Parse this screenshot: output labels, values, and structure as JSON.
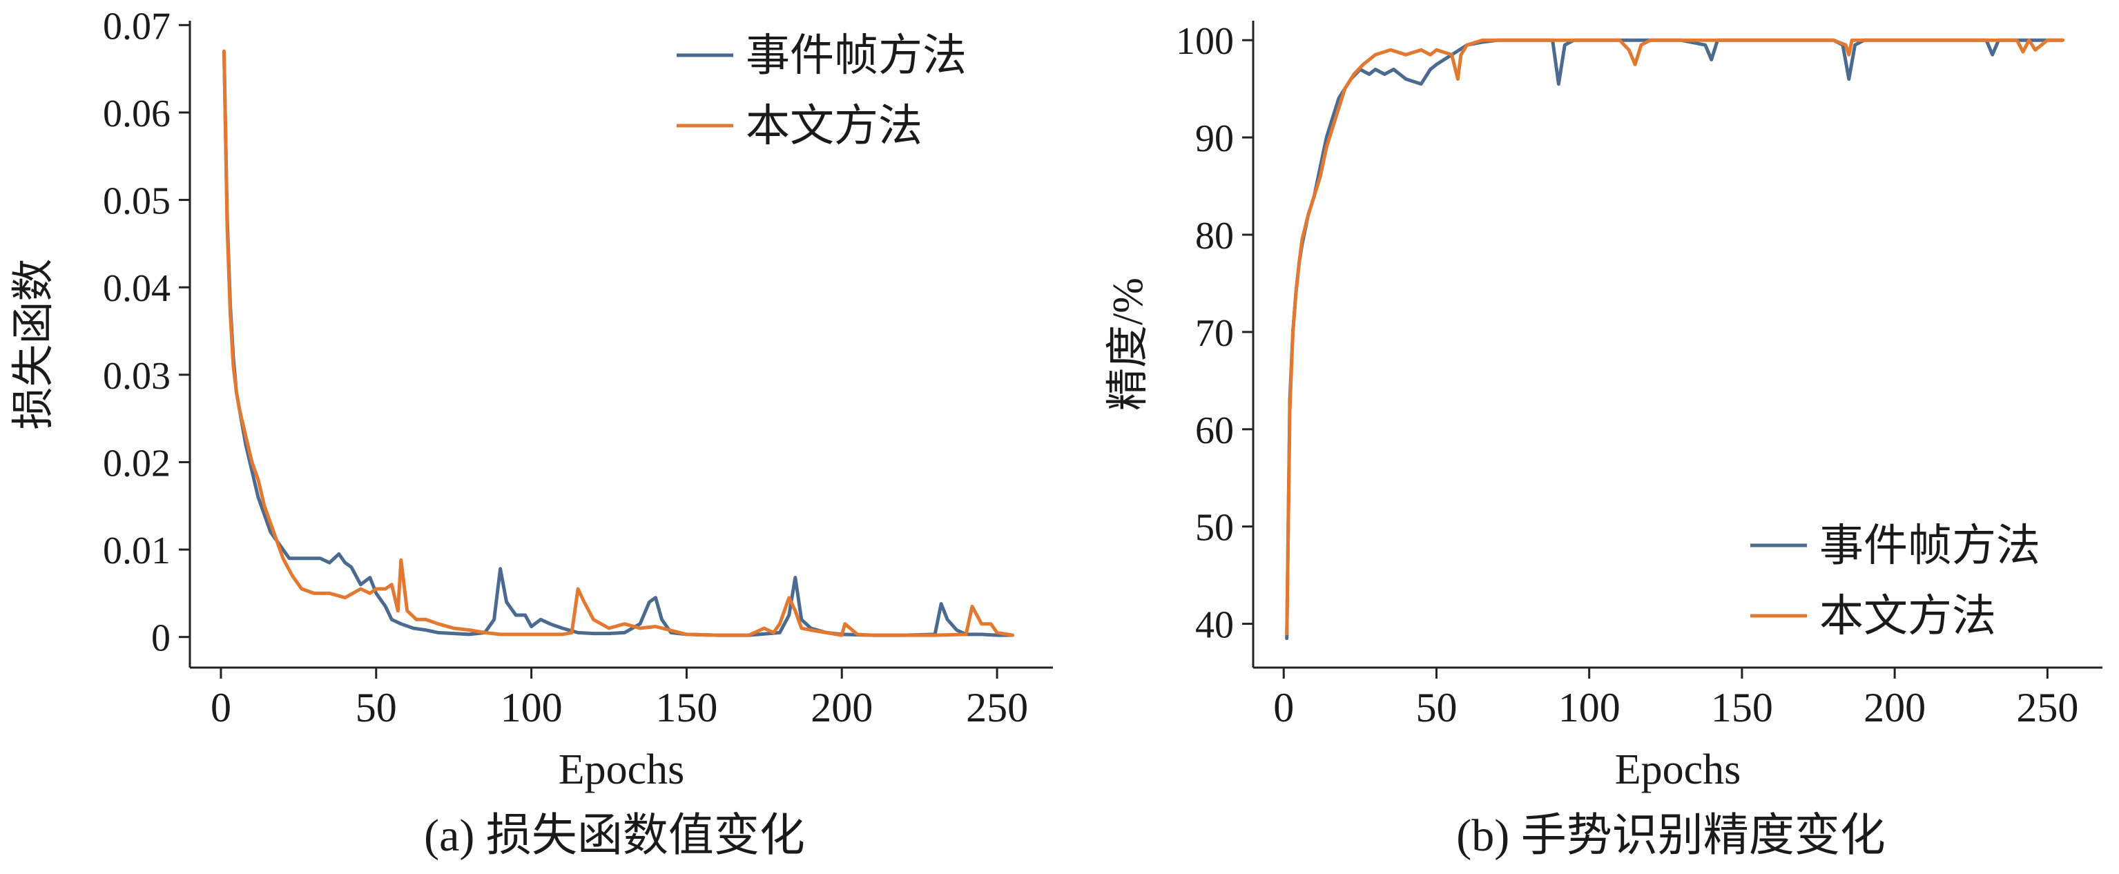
{
  "colors": {
    "series1": "#4a6a90",
    "series2": "#e37830",
    "axis": "#222222"
  },
  "chart_data": [
    {
      "type": "line",
      "title": "(a) 损失函数值变化",
      "xlabel": "Epochs",
      "ylabel": "损失函数",
      "xlim": [
        -10,
        268
      ],
      "ylim": [
        -0.0035,
        0.0705
      ],
      "xticks": [
        0,
        50,
        100,
        150,
        200,
        250
      ],
      "xtick_labels": [
        "0",
        "50",
        "100",
        "150",
        "200",
        "250"
      ],
      "yticks": [
        0,
        0.01,
        0.02,
        0.03,
        0.04,
        0.05,
        0.06,
        0.07
      ],
      "ytick_labels": [
        "0",
        "0.01",
        "0.02",
        "0.03",
        "0.04",
        "0.05",
        "0.06",
        "0.07"
      ],
      "grid": false,
      "legend_position": "top-right",
      "series": [
        {
          "name": "事件帧方法",
          "x": [
            1,
            2,
            3,
            4,
            5,
            6,
            8,
            10,
            12,
            14,
            16,
            18,
            20,
            22,
            25,
            28,
            32,
            35,
            38,
            40,
            42,
            45,
            48,
            50,
            53,
            55,
            58,
            62,
            66,
            70,
            75,
            80,
            85,
            88,
            90,
            92,
            95,
            98,
            100,
            103,
            106,
            110,
            115,
            120,
            125,
            130,
            135,
            138,
            140,
            142,
            145,
            150,
            160,
            170,
            180,
            183,
            185,
            187,
            190,
            195,
            200,
            210,
            220,
            230,
            232,
            234,
            237,
            240,
            245,
            250,
            255
          ],
          "y": [
            0.067,
            0.048,
            0.038,
            0.032,
            0.028,
            0.026,
            0.022,
            0.019,
            0.016,
            0.014,
            0.012,
            0.011,
            0.01,
            0.009,
            0.009,
            0.009,
            0.009,
            0.0085,
            0.0095,
            0.0085,
            0.008,
            0.006,
            0.0068,
            0.005,
            0.0035,
            0.002,
            0.0015,
            0.001,
            0.0008,
            0.0005,
            0.0004,
            0.0003,
            0.0005,
            0.002,
            0.0078,
            0.004,
            0.0025,
            0.0025,
            0.0012,
            0.002,
            0.0015,
            0.001,
            0.0005,
            0.0004,
            0.0004,
            0.0005,
            0.0015,
            0.004,
            0.0045,
            0.002,
            0.0005,
            0.0003,
            0.0002,
            0.0002,
            0.0005,
            0.0025,
            0.0068,
            0.002,
            0.001,
            0.0005,
            0.0003,
            0.0002,
            0.0002,
            0.0003,
            0.0038,
            0.002,
            0.0008,
            0.0003,
            0.0003,
            0.0002,
            0.0002
          ]
        },
        {
          "name": "本文方法",
          "x": [
            1,
            2,
            3,
            4,
            5,
            6,
            8,
            10,
            12,
            14,
            16,
            18,
            20,
            23,
            26,
            30,
            35,
            40,
            45,
            48,
            50,
            53,
            55,
            57,
            58,
            60,
            63,
            66,
            70,
            75,
            80,
            85,
            90,
            95,
            100,
            105,
            110,
            113,
            115,
            117,
            120,
            125,
            130,
            135,
            140,
            150,
            160,
            170,
            175,
            178,
            180,
            183,
            185,
            187,
            190,
            195,
            200,
            201,
            205,
            210,
            220,
            230,
            240,
            242,
            245,
            248,
            250,
            255
          ],
          "y": [
            0.067,
            0.047,
            0.037,
            0.031,
            0.028,
            0.026,
            0.023,
            0.02,
            0.018,
            0.015,
            0.013,
            0.011,
            0.009,
            0.007,
            0.0055,
            0.005,
            0.005,
            0.0045,
            0.0055,
            0.005,
            0.0055,
            0.0055,
            0.006,
            0.003,
            0.0088,
            0.003,
            0.002,
            0.002,
            0.0015,
            0.001,
            0.0008,
            0.0005,
            0.0003,
            0.0003,
            0.0003,
            0.0003,
            0.0003,
            0.0005,
            0.0055,
            0.004,
            0.002,
            0.001,
            0.0015,
            0.001,
            0.0012,
            0.0003,
            0.0002,
            0.0002,
            0.001,
            0.0005,
            0.0015,
            0.0045,
            0.003,
            0.001,
            0.0008,
            0.0005,
            0.0002,
            0.0015,
            0.0003,
            0.0002,
            0.0002,
            0.0002,
            0.0003,
            0.0035,
            0.0015,
            0.0015,
            0.0005,
            0.0002
          ]
        }
      ]
    },
    {
      "type": "line",
      "title": "(b) 手势识别精度变化",
      "xlabel": "Epochs",
      "ylabel": "精度/%",
      "xlim": [
        -10,
        268
      ],
      "ylim": [
        35.5,
        102
      ],
      "xticks": [
        0,
        50,
        100,
        150,
        200,
        250
      ],
      "xtick_labels": [
        "0",
        "50",
        "100",
        "150",
        "200",
        "250"
      ],
      "yticks": [
        40,
        50,
        60,
        70,
        80,
        90,
        100
      ],
      "ytick_labels": [
        "40",
        "50",
        "60",
        "70",
        "80",
        "90",
        "100"
      ],
      "grid": false,
      "legend_position": "bottom-right",
      "series": [
        {
          "name": "事件帧方法",
          "x": [
            1,
            2,
            3,
            4,
            5,
            6,
            8,
            10,
            12,
            14,
            16,
            18,
            20,
            22,
            25,
            28,
            30,
            33,
            36,
            40,
            45,
            48,
            50,
            55,
            60,
            65,
            70,
            80,
            88,
            90,
            92,
            95,
            100,
            110,
            120,
            130,
            138,
            140,
            142,
            145,
            150,
            160,
            170,
            180,
            183,
            185,
            187,
            190,
            200,
            210,
            220,
            230,
            232,
            234,
            236,
            240,
            245,
            250,
            255
          ],
          "y": [
            38.5,
            63,
            70,
            74,
            77,
            79,
            82,
            84,
            87,
            90,
            92,
            94,
            95,
            96,
            97,
            96.5,
            97,
            96.5,
            97,
            96,
            95.5,
            97,
            97.5,
            98.5,
            99.5,
            99.8,
            100,
            100,
            100,
            95.5,
            99.5,
            100,
            100,
            100,
            100,
            100,
            99.5,
            98,
            100,
            100,
            100,
            100,
            100,
            100,
            99.5,
            96,
            99.5,
            100,
            100,
            100,
            100,
            100,
            98.5,
            100,
            100,
            100,
            100,
            100,
            100
          ]
        },
        {
          "name": "本文方法",
          "x": [
            1,
            2,
            3,
            4,
            5,
            6,
            8,
            10,
            12,
            14,
            16,
            18,
            20,
            23,
            26,
            30,
            35,
            40,
            45,
            48,
            50,
            55,
            57,
            58,
            60,
            65,
            70,
            80,
            90,
            100,
            110,
            113,
            115,
            117,
            120,
            130,
            140,
            150,
            160,
            170,
            180,
            184,
            185,
            186,
            190,
            200,
            210,
            220,
            230,
            240,
            242,
            244,
            246,
            250,
            255
          ],
          "y": [
            39,
            62,
            70,
            74,
            77,
            79.5,
            82,
            84,
            86,
            89,
            91,
            93,
            95,
            96.5,
            97.5,
            98.5,
            99,
            98.5,
            99,
            98.5,
            99,
            98.5,
            96,
            98.5,
            99.5,
            100,
            100,
            100,
            100,
            100,
            100,
            99,
            97.5,
            99.5,
            100,
            100,
            100,
            100,
            100,
            100,
            100,
            99.5,
            98.5,
            100,
            100,
            100,
            100,
            100,
            100,
            100,
            98.8,
            100,
            99,
            100,
            100
          ]
        }
      ]
    }
  ]
}
